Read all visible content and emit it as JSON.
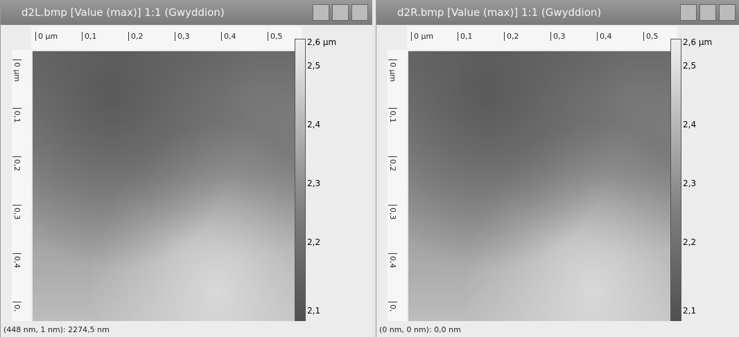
{
  "windows": [
    {
      "title": "d2L.bmp [Value (max)] 1:1 (Gwyddion)",
      "x_ruler": [
        "0 µm",
        "0,1",
        "0,2",
        "0,3",
        "0,4",
        "0,5"
      ],
      "y_ruler": [
        "0 µm",
        "0,1",
        "0,2",
        "0,3",
        "0,4",
        "0,"
      ],
      "color_scale": [
        "2,6 µm",
        "2,5",
        "2,4",
        "2,3",
        "2,2",
        "2,1"
      ],
      "status": "(448 nm, 1 nm): 2274,5 nm"
    },
    {
      "title": "d2R.bmp [Value (max)] 1:1 (Gwyddion)",
      "x_ruler": [
        "0 µm",
        "0,1",
        "0,2",
        "0,3",
        "0,4",
        "0,5"
      ],
      "y_ruler": [
        "0 µm",
        "0,1",
        "0,2",
        "0,3",
        "0,4",
        "0,"
      ],
      "color_scale": [
        "2,6 µm",
        "2,5",
        "2,4",
        "2,3",
        "2,2",
        "2,1"
      ],
      "status": "(0 nm, 0 nm): 0,0 nm"
    }
  ]
}
